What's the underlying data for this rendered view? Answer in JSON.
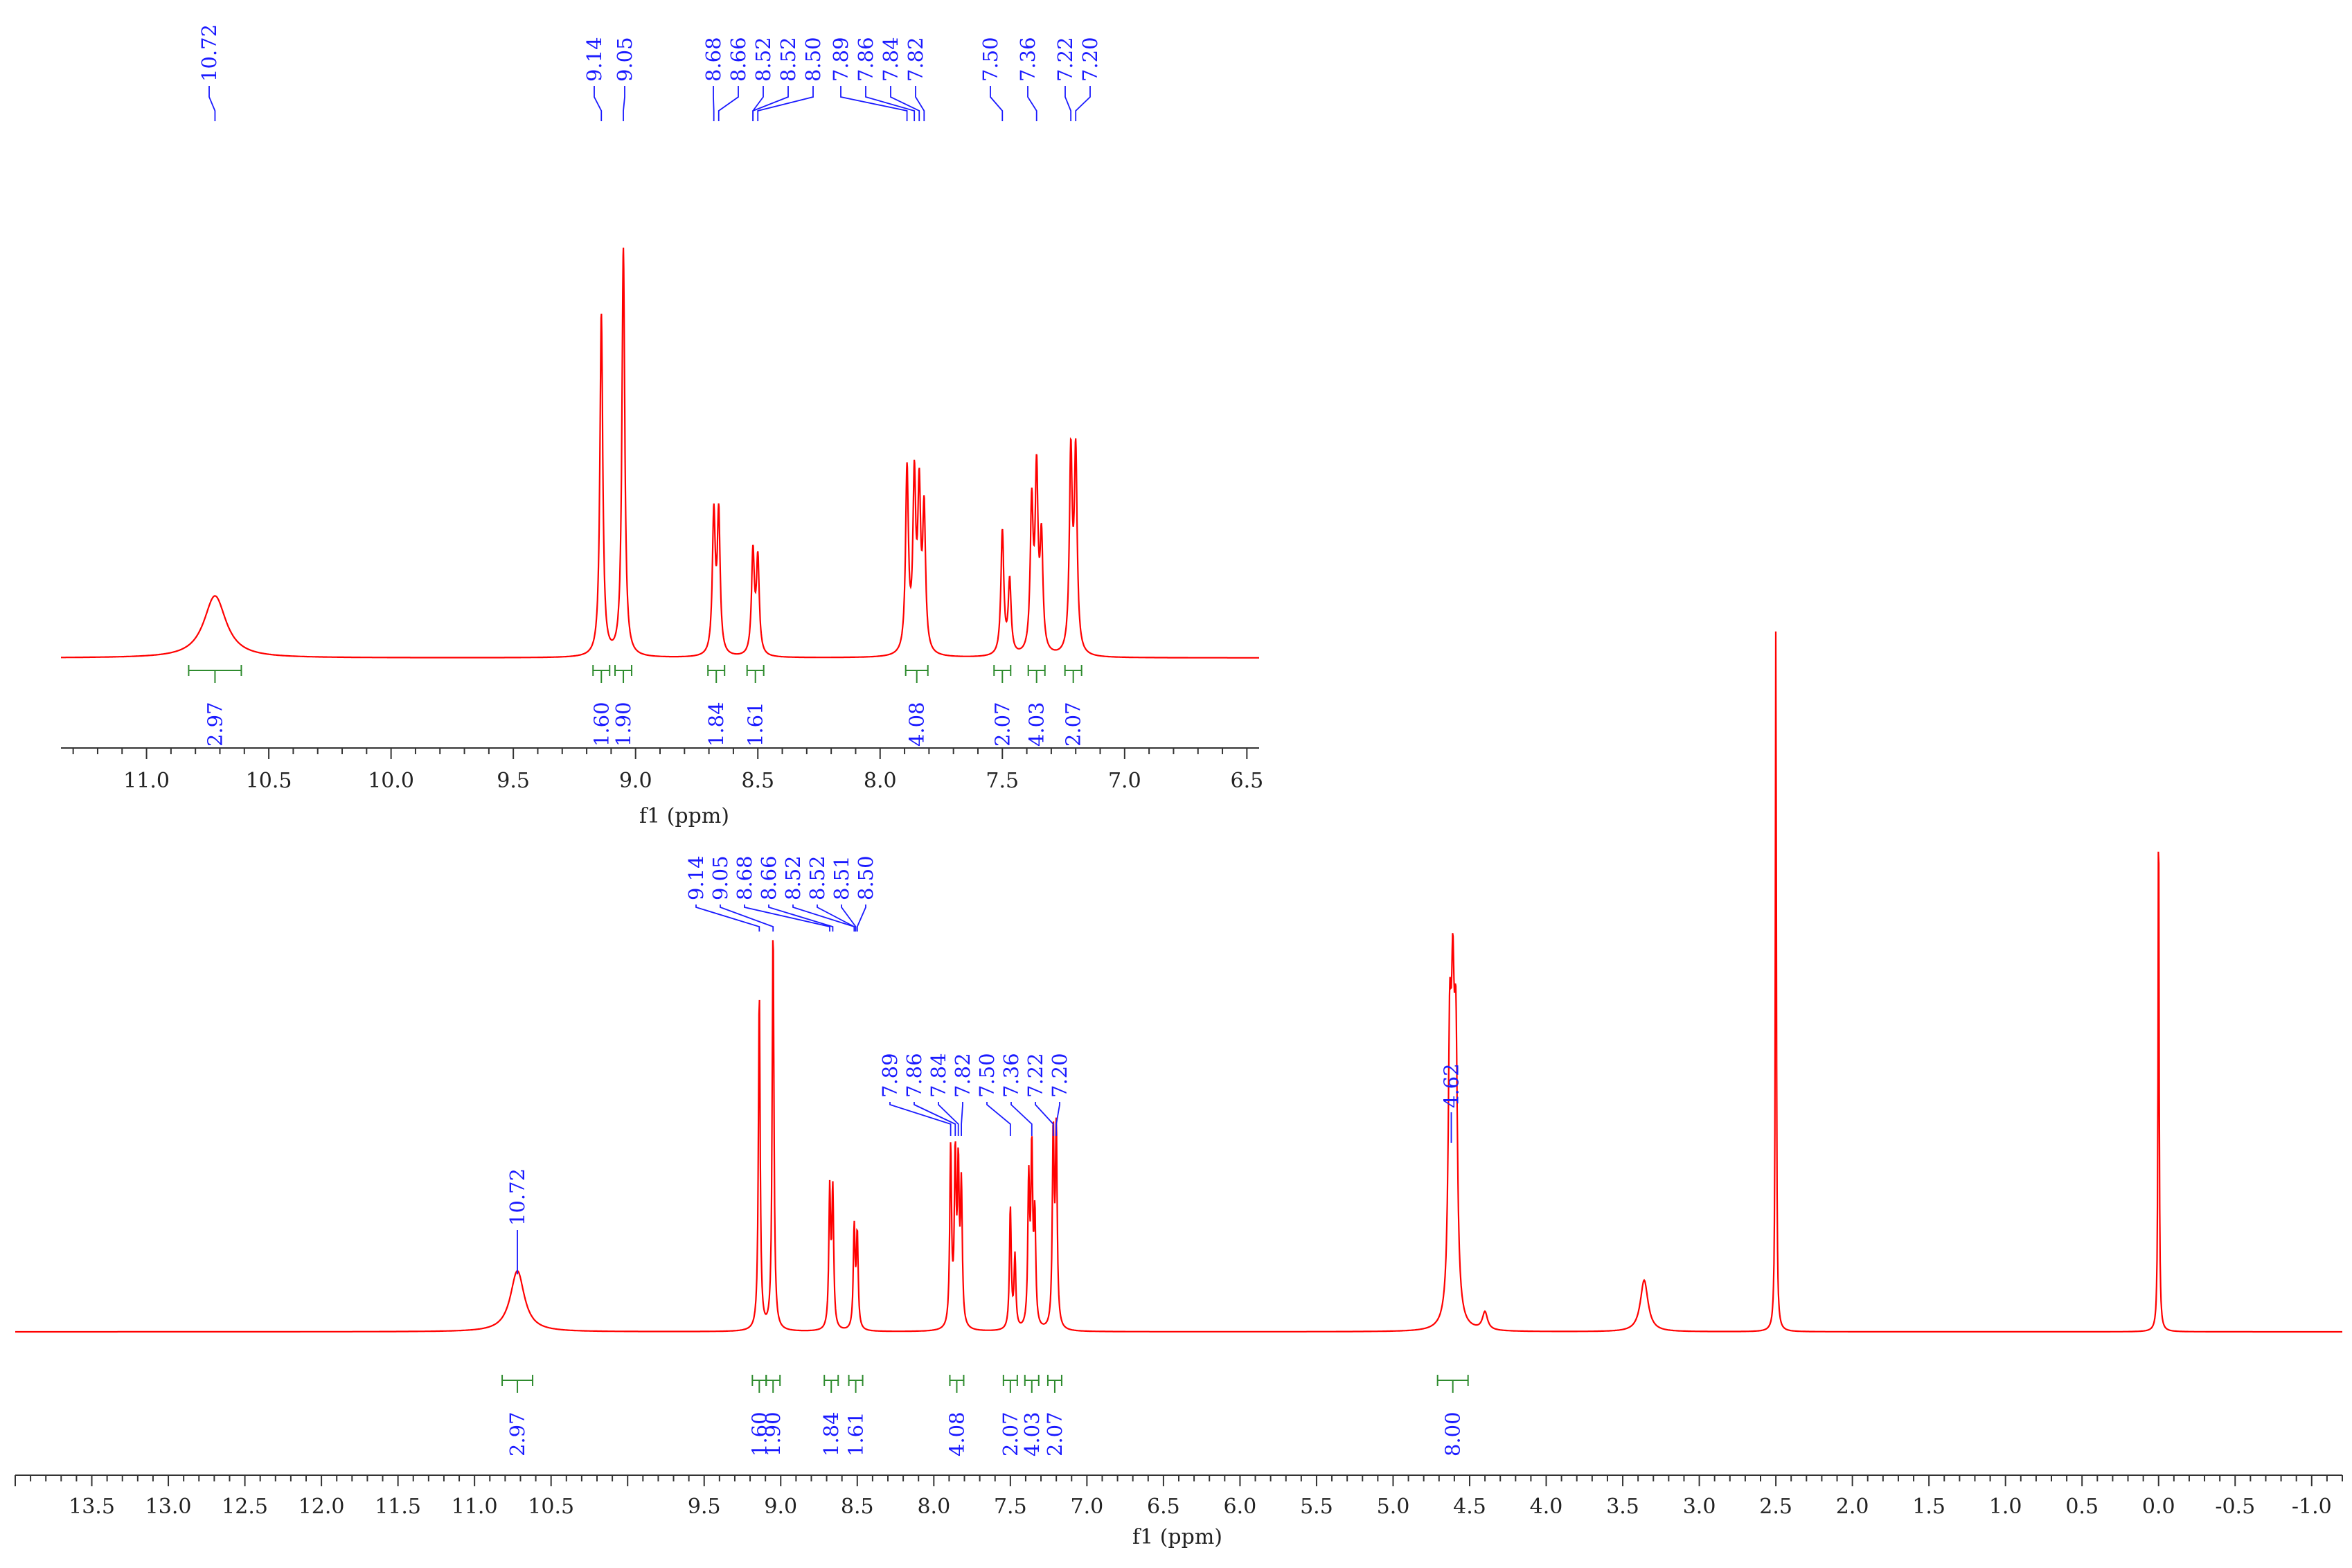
{
  "chart_data": [
    {
      "panel": "main",
      "type": "line",
      "xlabel": "f1 (ppm)",
      "xlim": [
        14.0,
        -1.2
      ],
      "x_ticks": [
        "13.5",
        "13.0",
        "12.5",
        "12.0",
        "11.5",
        "11.0",
        "10.5",
        "9.5",
        "9.0",
        "8.5",
        "8.0",
        "7.5",
        "7.0",
        "6.5",
        "6.0",
        "5.5",
        "5.0",
        "4.5",
        "4.0",
        "3.5",
        "3.0",
        "2.5",
        "2.0",
        "1.5",
        "1.0",
        "0.5",
        "0.0",
        "-0.5",
        "-1.0"
      ],
      "x_tick_values": [
        13.5,
        13.0,
        12.5,
        12.0,
        11.5,
        11.0,
        10.5,
        9.5,
        9.0,
        8.5,
        8.0,
        7.5,
        7.0,
        6.5,
        6.0,
        5.5,
        5.0,
        4.5,
        4.0,
        3.5,
        3.0,
        2.5,
        2.0,
        1.5,
        1.0,
        0.5,
        0.0,
        -0.5,
        -1.0
      ],
      "line_color": "#ff0000",
      "peaks": [
        {
          "ppm": 10.72,
          "height": 0.085,
          "width": 0.055
        },
        {
          "ppm": 9.14,
          "height": 0.47,
          "width": 0.007
        },
        {
          "ppm": 9.05,
          "height": 0.56,
          "width": 0.007
        },
        {
          "ppm": 8.68,
          "height": 0.19,
          "width": 0.007
        },
        {
          "ppm": 8.66,
          "height": 0.19,
          "width": 0.007
        },
        {
          "ppm": 8.52,
          "height": 0.14,
          "width": 0.007
        },
        {
          "ppm": 8.5,
          "height": 0.13,
          "width": 0.007
        },
        {
          "ppm": 7.89,
          "height": 0.25,
          "width": 0.007
        },
        {
          "ppm": 7.86,
          "height": 0.23,
          "width": 0.007
        },
        {
          "ppm": 7.84,
          "height": 0.21,
          "width": 0.007
        },
        {
          "ppm": 7.82,
          "height": 0.19,
          "width": 0.007
        },
        {
          "ppm": 7.5,
          "height": 0.17,
          "width": 0.007
        },
        {
          "ppm": 7.47,
          "height": 0.1,
          "width": 0.007
        },
        {
          "ppm": 7.38,
          "height": 0.2,
          "width": 0.007
        },
        {
          "ppm": 7.36,
          "height": 0.24,
          "width": 0.007
        },
        {
          "ppm": 7.34,
          "height": 0.15,
          "width": 0.007
        },
        {
          "ppm": 7.22,
          "height": 0.27,
          "width": 0.007
        },
        {
          "ppm": 7.2,
          "height": 0.27,
          "width": 0.007
        },
        {
          "ppm": 4.63,
          "height": 0.36,
          "width": 0.012
        },
        {
          "ppm": 4.61,
          "height": 0.37,
          "width": 0.012
        },
        {
          "ppm": 4.59,
          "height": 0.35,
          "width": 0.012
        },
        {
          "ppm": 4.4,
          "height": 0.025,
          "width": 0.02
        },
        {
          "ppm": 3.36,
          "height": 0.072,
          "width": 0.03
        },
        {
          "ppm": 2.5,
          "height": 1.0,
          "width": 0.004
        },
        {
          "ppm": 0.0,
          "height": 0.75,
          "width": 0.004
        }
      ],
      "peak_labels": {
        "group_10": [
          "10.72"
        ],
        "group_9": [
          "9.14",
          "9.05",
          "8.68",
          "8.66",
          "8.52",
          "8.52",
          "8.51",
          "8.50"
        ],
        "group_7": [
          "7.89",
          "7.86",
          "7.84",
          "7.82",
          "7.50",
          "7.36",
          "7.22",
          "7.20"
        ],
        "group_4": [
          "4.62"
        ]
      },
      "integrals": [
        {
          "center": 10.72,
          "label": "2.97"
        },
        {
          "center": 9.14,
          "label": "1.60"
        },
        {
          "center": 9.05,
          "label": "1.90"
        },
        {
          "center": 8.67,
          "label": "1.84"
        },
        {
          "center": 8.51,
          "label": "1.61"
        },
        {
          "center": 7.85,
          "label": "4.08"
        },
        {
          "center": 7.5,
          "label": "2.07"
        },
        {
          "center": 7.36,
          "label": "4.03"
        },
        {
          "center": 7.21,
          "label": "2.07"
        },
        {
          "center": 4.61,
          "label": "8.00"
        }
      ]
    },
    {
      "panel": "inset",
      "type": "line",
      "xlabel": "f1 (ppm)",
      "xlim": [
        11.35,
        6.45
      ],
      "x_ticks": [
        "11.0",
        "10.5",
        "10.0",
        "9.5",
        "9.0",
        "8.5",
        "8.0",
        "7.5",
        "7.0",
        "6.5"
      ],
      "x_tick_values": [
        11.0,
        10.5,
        10.0,
        9.5,
        9.0,
        8.5,
        8.0,
        7.5,
        7.0,
        6.5
      ],
      "line_color": "#ff0000",
      "peak_labels": [
        "10.72",
        "9.14",
        "9.05",
        "8.68",
        "8.66",
        "8.52",
        "8.52",
        "8.50",
        "7.89",
        "7.86",
        "7.84",
        "7.82",
        "7.50",
        "7.36",
        "7.22",
        "7.20"
      ],
      "integrals": [
        {
          "center": 10.72,
          "label": "2.97"
        },
        {
          "center": 9.14,
          "label": "1.60"
        },
        {
          "center": 9.05,
          "label": "1.90"
        },
        {
          "center": 8.67,
          "label": "1.84"
        },
        {
          "center": 8.51,
          "label": "1.61"
        },
        {
          "center": 7.85,
          "label": "4.08"
        },
        {
          "center": 7.5,
          "label": "2.07"
        },
        {
          "center": 7.36,
          "label": "4.03"
        },
        {
          "center": 7.21,
          "label": "2.07"
        }
      ]
    }
  ]
}
